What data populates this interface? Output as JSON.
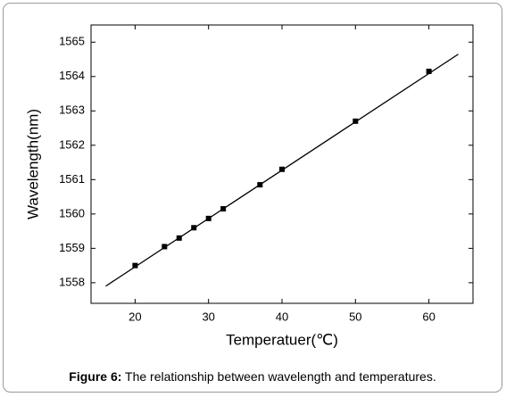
{
  "chart_data": {
    "type": "scatter",
    "x_label": "Temperatuer(℃)",
    "y_label": "Wavelength(nm)",
    "caption_label": "Figure 6:",
    "caption": "The relationship between wavelength and temperatures.",
    "x": [
      20,
      24,
      26,
      28,
      30,
      32,
      37,
      40,
      50,
      60
    ],
    "values": [
      1558.5,
      1559.05,
      1559.3,
      1559.6,
      1559.87,
      1560.15,
      1560.85,
      1561.3,
      1562.7,
      1564.15
    ],
    "color": "#000000",
    "fit_line": {
      "x": [
        16,
        64
      ],
      "values": [
        1557.9,
        1564.65
      ]
    },
    "xlim": [
      14,
      66
    ],
    "ylim": [
      1557.4,
      1565.5
    ],
    "xticks": [
      20,
      30,
      40,
      50,
      60
    ],
    "yticks": [
      1558,
      1559,
      1560,
      1561,
      1562,
      1563,
      1564,
      1565
    ]
  }
}
